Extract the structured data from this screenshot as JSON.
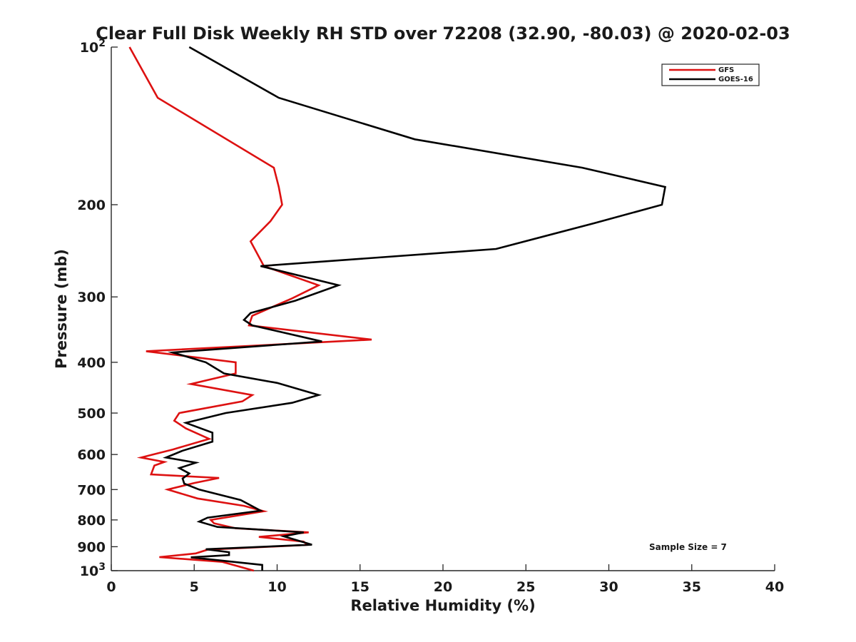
{
  "chart_data": {
    "type": "line",
    "title": "Clear Full Disk Weekly RH STD over 72208 (32.90, -80.03) @ 2020-02-03",
    "xlabel": "Relative Humidity (%)",
    "ylabel": "Pressure (mb)",
    "xlim": [
      0,
      40
    ],
    "ylim": [
      100,
      1000
    ],
    "yscale": "log",
    "y_reversed": true,
    "grid": false,
    "legend_position": "top-right",
    "x_ticks": [
      "0",
      "5",
      "10",
      "15",
      "20",
      "25",
      "30",
      "35",
      "40"
    ],
    "x_tick_values": [
      0,
      5,
      10,
      15,
      20,
      25,
      30,
      35,
      40
    ],
    "y_ticks": [
      {
        "value": 100,
        "label": "10",
        "sup": "2"
      },
      {
        "value": 200,
        "label": "200",
        "sup": ""
      },
      {
        "value": 300,
        "label": "300",
        "sup": ""
      },
      {
        "value": 400,
        "label": "400",
        "sup": ""
      },
      {
        "value": 500,
        "label": "500",
        "sup": ""
      },
      {
        "value": 600,
        "label": "600",
        "sup": ""
      },
      {
        "value": 700,
        "label": "700",
        "sup": ""
      },
      {
        "value": 800,
        "label": "800",
        "sup": ""
      },
      {
        "value": 900,
        "label": "900",
        "sup": ""
      },
      {
        "value": 1000,
        "label": "10",
        "sup": "3"
      }
    ],
    "annotation": "Sample Size = 7",
    "series": [
      {
        "name": "GFS",
        "color": "#dd1111",
        "points": [
          [
            1.1,
            100
          ],
          [
            2.8,
            125
          ],
          [
            9.8,
            170
          ],
          [
            10.1,
            185
          ],
          [
            10.3,
            200
          ],
          [
            9.6,
            215
          ],
          [
            8.4,
            235
          ],
          [
            9.2,
            262
          ],
          [
            12.5,
            285
          ],
          [
            10.9,
            302
          ],
          [
            8.5,
            326
          ],
          [
            8.3,
            340
          ],
          [
            15.7,
            362
          ],
          [
            2.1,
            381
          ],
          [
            7.5,
            400
          ],
          [
            7.5,
            420
          ],
          [
            4.8,
            440
          ],
          [
            8.5,
            462
          ],
          [
            7.9,
            475
          ],
          [
            4.1,
            500
          ],
          [
            3.8,
            517
          ],
          [
            4.5,
            535
          ],
          [
            5.9,
            560
          ],
          [
            3.7,
            587
          ],
          [
            1.8,
            608
          ],
          [
            3.2,
            620
          ],
          [
            2.6,
            630
          ],
          [
            2.4,
            655
          ],
          [
            6.5,
            665
          ],
          [
            5.0,
            680
          ],
          [
            3.4,
            700
          ],
          [
            5.2,
            728
          ],
          [
            8.0,
            752
          ],
          [
            9.2,
            770
          ],
          [
            6.0,
            800
          ],
          [
            6.2,
            812
          ],
          [
            7.5,
            830
          ],
          [
            11.9,
            845
          ],
          [
            8.9,
            862
          ],
          [
            11.6,
            880
          ],
          [
            11.8,
            893
          ],
          [
            5.8,
            912
          ],
          [
            5.1,
            927
          ],
          [
            2.9,
            942
          ],
          [
            6.7,
            962
          ],
          [
            8.6,
            1000
          ]
        ]
      },
      {
        "name": "GOES-16",
        "color": "#000000",
        "points": [
          [
            4.7,
            100
          ],
          [
            10.1,
            125
          ],
          [
            18.3,
            150
          ],
          [
            28.4,
            170
          ],
          [
            33.4,
            185
          ],
          [
            33.2,
            200
          ],
          [
            29.1,
            217
          ],
          [
            23.2,
            243
          ],
          [
            9.0,
            262
          ],
          [
            13.7,
            285
          ],
          [
            11.1,
            305
          ],
          [
            8.4,
            322
          ],
          [
            8.0,
            332
          ],
          [
            8.5,
            340
          ],
          [
            12.7,
            365
          ],
          [
            3.7,
            383
          ],
          [
            5.7,
            400
          ],
          [
            6.8,
            420
          ],
          [
            10.0,
            438
          ],
          [
            12.5,
            462
          ],
          [
            10.9,
            478
          ],
          [
            6.9,
            500
          ],
          [
            4.5,
            522
          ],
          [
            6.1,
            545
          ],
          [
            6.1,
            567
          ],
          [
            4.3,
            590
          ],
          [
            3.3,
            608
          ],
          [
            5.1,
            622
          ],
          [
            4.1,
            637
          ],
          [
            4.7,
            652
          ],
          [
            4.3,
            667
          ],
          [
            4.4,
            682
          ],
          [
            5.3,
            700
          ],
          [
            7.8,
            733
          ],
          [
            9.0,
            768
          ],
          [
            5.8,
            792
          ],
          [
            5.3,
            806
          ],
          [
            6.4,
            825
          ],
          [
            11.6,
            845
          ],
          [
            10.4,
            860
          ],
          [
            11.2,
            875
          ],
          [
            12.1,
            892
          ],
          [
            5.7,
            910
          ],
          [
            7.1,
            922
          ],
          [
            7.1,
            934
          ],
          [
            4.8,
            943
          ],
          [
            9.1,
            975
          ],
          [
            9.1,
            1000
          ]
        ]
      }
    ]
  }
}
